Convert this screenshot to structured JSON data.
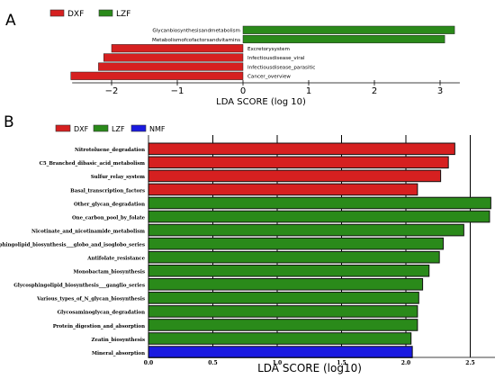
{
  "chart_data": [
    {
      "type": "bar",
      "orientation": "horizontal",
      "panel_label": "A",
      "xlabel": "LDA SCORE (log 10)",
      "xlim": [
        -2.6,
        3.3
      ],
      "xticks": [
        "-2",
        "-1",
        "0",
        "1",
        "2",
        "3"
      ],
      "grid": false,
      "legend_position": "top-left",
      "legend": [
        {
          "name": "DXF",
          "color": "#d62020"
        },
        {
          "name": "LZF",
          "color": "#2a8a1a"
        }
      ],
      "bars": [
        {
          "label": "Glycanbiosynthesisandmetabolism",
          "value": 3.22,
          "group": "LZF"
        },
        {
          "label": "Metabolismofcofactorsandvitamins",
          "value": 3.07,
          "group": "LZF"
        },
        {
          "label": "Excretorysystem",
          "value": -2.0,
          "group": "DXF"
        },
        {
          "label": "Infectiousdisease_viral",
          "value": -2.12,
          "group": "DXF"
        },
        {
          "label": "Infectiousdisease_parasitic",
          "value": -2.2,
          "group": "DXF"
        },
        {
          "label": "Cancer_overview",
          "value": -2.62,
          "group": "DXF"
        }
      ]
    },
    {
      "type": "bar",
      "orientation": "horizontal",
      "panel_label": "B",
      "xlabel": "LDA SCORE (log10)",
      "xlim": [
        0,
        2.7
      ],
      "xticks": [
        "0.0",
        "0.5",
        "1.0",
        "1.5",
        "2.0",
        "2.5"
      ],
      "grid": true,
      "legend_position": "top-left",
      "legend": [
        {
          "name": "DXF",
          "color": "#d62020"
        },
        {
          "name": "LZF",
          "color": "#2a8a1a"
        },
        {
          "name": "NMF",
          "color": "#1a1ae0"
        }
      ],
      "bars": [
        {
          "label": "Nitrotoluene_degradation",
          "value": 2.38,
          "group": "DXF"
        },
        {
          "label": "C5_Branched_dibasic_acid_metabolism",
          "value": 2.33,
          "group": "DXF"
        },
        {
          "label": "Sulfur_relay_system",
          "value": 2.27,
          "group": "DXF"
        },
        {
          "label": "Basal_transcription_factors",
          "value": 2.09,
          "group": "DXF"
        },
        {
          "label": "Other_glycan_degradation",
          "value": 2.66,
          "group": "LZF"
        },
        {
          "label": "One_carbon_pool_by_folate",
          "value": 2.65,
          "group": "LZF"
        },
        {
          "label": "Nicotinate_and_nicotinamide_metabolism",
          "value": 2.45,
          "group": "LZF"
        },
        {
          "label": "Glycosphingolipid_biosynthesis___globo_and_isoglobo_series",
          "value": 2.29,
          "group": "LZF"
        },
        {
          "label": "Antifolate_resistance",
          "value": 2.26,
          "group": "LZF"
        },
        {
          "label": "Monobactam_biosynthesis",
          "value": 2.18,
          "group": "LZF"
        },
        {
          "label": "Glycosphingolipid_biosynthesis___ganglio_series",
          "value": 2.13,
          "group": "LZF"
        },
        {
          "label": "Various_types_of_N_glycan_biosynthesis",
          "value": 2.1,
          "group": "LZF"
        },
        {
          "label": "Glycosaminoglycan_degradation",
          "value": 2.09,
          "group": "LZF"
        },
        {
          "label": "Protein_digestion_and_absorption",
          "value": 2.09,
          "group": "LZF"
        },
        {
          "label": "Zeatin_biosynthesis",
          "value": 2.04,
          "group": "LZF"
        },
        {
          "label": "Mineral_absorption",
          "value": 2.05,
          "group": "NMF"
        }
      ]
    }
  ]
}
